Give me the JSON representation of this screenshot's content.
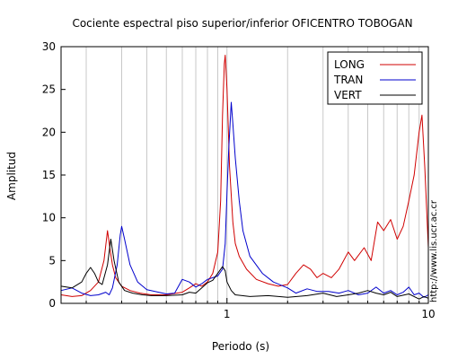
{
  "chart_data": {
    "type": "line",
    "title": "Cociente espectral piso superior/inferior OFICENTRO TOBOGAN",
    "xlabel": "Periodo (s)",
    "ylabel": "Amplitud",
    "xscale": "log",
    "xlim": [
      0.15,
      10
    ],
    "ylim": [
      0,
      30
    ],
    "x_ticks": [
      {
        "value": 1,
        "label": "1"
      },
      {
        "value": 10,
        "label": "10"
      }
    ],
    "y_ticks": [
      0,
      5,
      10,
      15,
      20,
      25,
      30
    ],
    "grid": "vertical",
    "legend_position": "top-right",
    "watermark": "http://www.lis.ucr.ac.cr",
    "series": [
      {
        "name": "LONG",
        "color": "#d00000",
        "points": [
          [
            0.15,
            1.0
          ],
          [
            0.17,
            0.8
          ],
          [
            0.19,
            0.9
          ],
          [
            0.21,
            1.5
          ],
          [
            0.23,
            2.5
          ],
          [
            0.245,
            5.0
          ],
          [
            0.255,
            8.5
          ],
          [
            0.262,
            6.5
          ],
          [
            0.27,
            4.5
          ],
          [
            0.28,
            3.0
          ],
          [
            0.3,
            2.0
          ],
          [
            0.33,
            1.5
          ],
          [
            0.37,
            1.2
          ],
          [
            0.42,
            1.0
          ],
          [
            0.5,
            1.0
          ],
          [
            0.6,
            1.3
          ],
          [
            0.65,
            1.8
          ],
          [
            0.7,
            2.3
          ],
          [
            0.75,
            2.0
          ],
          [
            0.8,
            2.5
          ],
          [
            0.85,
            3.5
          ],
          [
            0.9,
            6.0
          ],
          [
            0.93,
            12.0
          ],
          [
            0.95,
            22.0
          ],
          [
            0.97,
            28.0
          ],
          [
            0.98,
            29.0
          ],
          [
            1.0,
            25.0
          ],
          [
            1.03,
            16.0
          ],
          [
            1.07,
            9.5
          ],
          [
            1.1,
            7.0
          ],
          [
            1.15,
            5.5
          ],
          [
            1.25,
            4.0
          ],
          [
            1.4,
            2.8
          ],
          [
            1.6,
            2.3
          ],
          [
            1.8,
            2.0
          ],
          [
            2.0,
            2.2
          ],
          [
            2.2,
            3.5
          ],
          [
            2.4,
            4.5
          ],
          [
            2.6,
            4.0
          ],
          [
            2.8,
            3.0
          ],
          [
            3.0,
            3.5
          ],
          [
            3.3,
            3.0
          ],
          [
            3.6,
            4.0
          ],
          [
            4.0,
            6.0
          ],
          [
            4.3,
            5.0
          ],
          [
            4.8,
            6.5
          ],
          [
            5.2,
            5.0
          ],
          [
            5.6,
            9.5
          ],
          [
            6.0,
            8.5
          ],
          [
            6.5,
            9.8
          ],
          [
            7.0,
            7.5
          ],
          [
            7.5,
            9.0
          ],
          [
            8.0,
            12.0
          ],
          [
            8.5,
            15.0
          ],
          [
            9.0,
            20.0
          ],
          [
            9.3,
            22.0
          ],
          [
            9.6,
            16.0
          ],
          [
            10.0,
            6.5
          ]
        ]
      },
      {
        "name": "TRAN",
        "color": "#0000cc",
        "points": [
          [
            0.15,
            1.5
          ],
          [
            0.17,
            1.8
          ],
          [
            0.19,
            1.2
          ],
          [
            0.21,
            0.9
          ],
          [
            0.23,
            1.0
          ],
          [
            0.25,
            1.3
          ],
          [
            0.26,
            1.0
          ],
          [
            0.27,
            1.8
          ],
          [
            0.285,
            4.5
          ],
          [
            0.295,
            8.0
          ],
          [
            0.3,
            9.0
          ],
          [
            0.31,
            7.5
          ],
          [
            0.33,
            4.5
          ],
          [
            0.36,
            2.5
          ],
          [
            0.4,
            1.6
          ],
          [
            0.5,
            1.1
          ],
          [
            0.55,
            1.2
          ],
          [
            0.6,
            2.8
          ],
          [
            0.65,
            2.5
          ],
          [
            0.7,
            1.9
          ],
          [
            0.75,
            2.3
          ],
          [
            0.8,
            2.8
          ],
          [
            0.9,
            3.2
          ],
          [
            0.95,
            4.0
          ],
          [
            0.98,
            7.0
          ],
          [
            1.0,
            13.0
          ],
          [
            1.02,
            18.0
          ],
          [
            1.05,
            23.5
          ],
          [
            1.07,
            21.0
          ],
          [
            1.1,
            17.0
          ],
          [
            1.15,
            12.0
          ],
          [
            1.2,
            8.5
          ],
          [
            1.3,
            5.5
          ],
          [
            1.5,
            3.5
          ],
          [
            1.7,
            2.5
          ],
          [
            2.0,
            1.8
          ],
          [
            2.2,
            1.2
          ],
          [
            2.5,
            1.7
          ],
          [
            2.8,
            1.4
          ],
          [
            3.2,
            1.4
          ],
          [
            3.6,
            1.2
          ],
          [
            4.0,
            1.5
          ],
          [
            4.5,
            1.0
          ],
          [
            5.0,
            1.2
          ],
          [
            5.5,
            1.9
          ],
          [
            6.0,
            1.2
          ],
          [
            6.5,
            1.5
          ],
          [
            7.0,
            1.0
          ],
          [
            7.5,
            1.3
          ],
          [
            8.0,
            1.9
          ],
          [
            8.5,
            1.0
          ],
          [
            9.0,
            1.2
          ],
          [
            9.5,
            0.7
          ],
          [
            10.0,
            1.0
          ]
        ]
      },
      {
        "name": "VERT",
        "color": "#000000",
        "points": [
          [
            0.15,
            2.0
          ],
          [
            0.17,
            1.8
          ],
          [
            0.19,
            2.5
          ],
          [
            0.2,
            3.5
          ],
          [
            0.21,
            4.2
          ],
          [
            0.22,
            3.5
          ],
          [
            0.23,
            2.5
          ],
          [
            0.24,
            2.2
          ],
          [
            0.255,
            4.5
          ],
          [
            0.265,
            7.5
          ],
          [
            0.275,
            5.0
          ],
          [
            0.29,
            2.5
          ],
          [
            0.31,
            1.5
          ],
          [
            0.34,
            1.2
          ],
          [
            0.38,
            1.0
          ],
          [
            0.42,
            0.9
          ],
          [
            0.5,
            0.9
          ],
          [
            0.6,
            1.0
          ],
          [
            0.65,
            1.3
          ],
          [
            0.7,
            1.2
          ],
          [
            0.75,
            1.8
          ],
          [
            0.8,
            2.4
          ],
          [
            0.85,
            2.7
          ],
          [
            0.9,
            3.5
          ],
          [
            0.95,
            4.3
          ],
          [
            0.98,
            3.8
          ],
          [
            1.0,
            2.5
          ],
          [
            1.05,
            1.5
          ],
          [
            1.1,
            1.0
          ],
          [
            1.3,
            0.8
          ],
          [
            1.6,
            0.9
          ],
          [
            2.0,
            0.7
          ],
          [
            2.5,
            0.9
          ],
          [
            3.0,
            1.2
          ],
          [
            3.5,
            0.8
          ],
          [
            4.0,
            1.0
          ],
          [
            4.5,
            1.2
          ],
          [
            5.0,
            1.5
          ],
          [
            5.5,
            1.2
          ],
          [
            6.0,
            1.0
          ],
          [
            6.5,
            1.3
          ],
          [
            7.0,
            0.8
          ],
          [
            8.0,
            1.1
          ],
          [
            9.0,
            0.5
          ],
          [
            9.5,
            0.8
          ],
          [
            10.0,
            0.6
          ]
        ]
      }
    ]
  }
}
